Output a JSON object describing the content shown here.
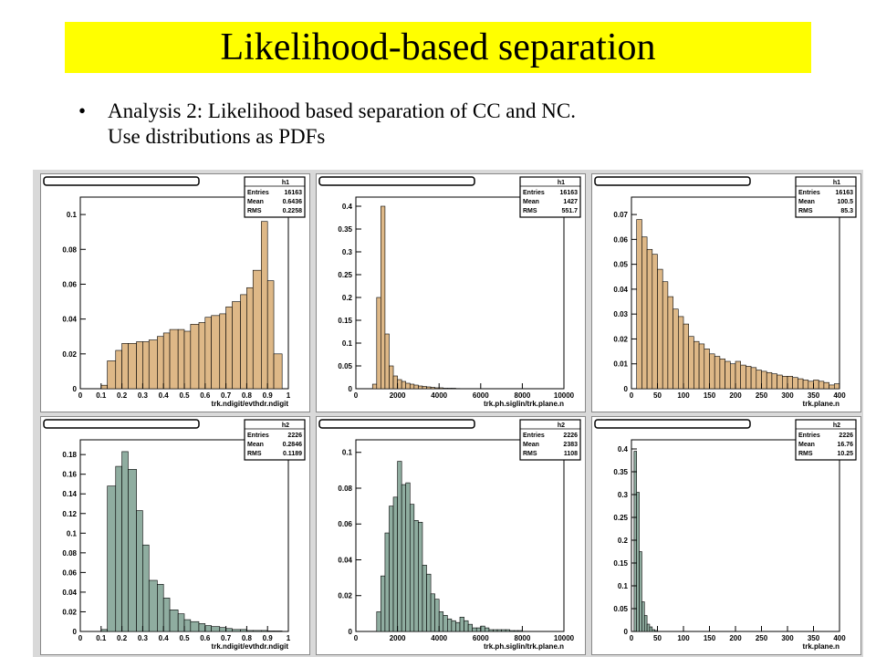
{
  "slide": {
    "title": "Likelihood-based separation",
    "bullet": "•",
    "bullet_line1": "Analysis 2: Likelihood based separation of CC and NC.",
    "bullet_line2": "Use distributions as PDFs"
  },
  "colors": {
    "title_bg": "#ffff00",
    "cc_fill": "#deb887",
    "nc_fill": "#8fada0",
    "frame_bg": "#d9d9d9"
  },
  "chart_data": [
    {
      "type": "bar",
      "histogram": "h1",
      "xlabel": "trk.ndigit/evthdr.ndigit",
      "xlim": [
        0,
        1
      ],
      "ylim": [
        0,
        0.11
      ],
      "xticks": [
        "0",
        "0.1",
        "0.2",
        "0.3",
        "0.4",
        "0.5",
        "0.6",
        "0.7",
        "0.8",
        "0.9",
        "1"
      ],
      "yticks": [
        "0",
        "0.02",
        "0.04",
        "0.06",
        "0.08",
        "0.1"
      ],
      "stats": {
        "name": "h1",
        "rows": [
          [
            "Entries",
            "16163"
          ],
          [
            "Mean",
            "0.6436"
          ],
          [
            "RMS",
            "0.2258"
          ]
        ]
      },
      "bin_edges": [
        0.1,
        0.13,
        0.17,
        0.2,
        0.23,
        0.27,
        0.3,
        0.33,
        0.37,
        0.4,
        0.43,
        0.47,
        0.5,
        0.53,
        0.57,
        0.6,
        0.63,
        0.67,
        0.7,
        0.73,
        0.77,
        0.8,
        0.83,
        0.87,
        0.9,
        0.93,
        0.97
      ],
      "values": [
        0.002,
        0.016,
        0.022,
        0.026,
        0.026,
        0.027,
        0.027,
        0.028,
        0.03,
        0.032,
        0.034,
        0.034,
        0.033,
        0.037,
        0.038,
        0.041,
        0.042,
        0.043,
        0.047,
        0.05,
        0.054,
        0.058,
        0.068,
        0.096,
        0.062,
        0.02
      ]
    },
    {
      "type": "bar",
      "histogram": "h1",
      "xlabel": "trk.ph.siglin/trk.plane.n",
      "xlim": [
        0,
        10000
      ],
      "ylim": [
        0,
        0.42
      ],
      "xticks": [
        "0",
        "2000",
        "4000",
        "6000",
        "8000",
        "10000"
      ],
      "yticks": [
        "0",
        "0.05",
        "0.1",
        "0.15",
        "0.2",
        "0.25",
        "0.3",
        "0.35",
        "0.4"
      ],
      "stats": {
        "name": "h1",
        "rows": [
          [
            "Entries",
            "16163"
          ],
          [
            "Mean",
            "1427"
          ],
          [
            "RMS",
            "551.7"
          ]
        ]
      },
      "bin_edges": [
        0,
        200,
        400,
        600,
        800,
        1000,
        1200,
        1400,
        1600,
        1800,
        2000,
        2200,
        2400,
        2600,
        2800,
        3000,
        3200,
        3400,
        3600,
        3800,
        4000,
        4200,
        4400,
        4600,
        4800,
        5000
      ],
      "values": [
        0,
        0,
        0,
        0,
        0.01,
        0.2,
        0.4,
        0.12,
        0.05,
        0.028,
        0.02,
        0.016,
        0.012,
        0.01,
        0.008,
        0.006,
        0.005,
        0.004,
        0.003,
        0.002,
        0.002,
        0.001,
        0.001,
        0.001,
        0.0005
      ]
    },
    {
      "type": "bar",
      "histogram": "h1",
      "xlabel": "trk.plane.n",
      "xlim": [
        0,
        400
      ],
      "ylim": [
        0,
        0.077
      ],
      "xticks": [
        "0",
        "50",
        "100",
        "150",
        "200",
        "250",
        "300",
        "350",
        "400"
      ],
      "yticks": [
        "0",
        "0.01",
        "0.02",
        "0.03",
        "0.04",
        "0.05",
        "0.06",
        "0.07"
      ],
      "stats": {
        "name": "h1",
        "rows": [
          [
            "Entries",
            "16163"
          ],
          [
            "Mean",
            "100.5"
          ],
          [
            "RMS",
            "85.3"
          ]
        ]
      },
      "bin_edges": [
        10,
        20,
        30,
        40,
        50,
        60,
        70,
        80,
        90,
        100,
        110,
        120,
        130,
        140,
        150,
        160,
        170,
        180,
        190,
        200,
        210,
        220,
        230,
        240,
        250,
        260,
        270,
        280,
        290,
        300,
        310,
        320,
        330,
        340,
        350,
        360,
        370,
        380,
        390,
        400
      ],
      "values": [
        0.068,
        0.061,
        0.056,
        0.054,
        0.048,
        0.043,
        0.037,
        0.032,
        0.029,
        0.026,
        0.021,
        0.019,
        0.018,
        0.016,
        0.014,
        0.013,
        0.012,
        0.011,
        0.01,
        0.011,
        0.0095,
        0.009,
        0.0085,
        0.0075,
        0.007,
        0.0065,
        0.006,
        0.0055,
        0.005,
        0.005,
        0.0045,
        0.004,
        0.0035,
        0.003,
        0.0035,
        0.003,
        0.0025,
        0.0015,
        0.002
      ]
    },
    {
      "type": "bar",
      "histogram": "h2",
      "xlabel": "trk.ndigit/evthdr.ndigit",
      "xlim": [
        0,
        1
      ],
      "ylim": [
        0,
        0.195
      ],
      "xticks": [
        "0",
        "0.1",
        "0.2",
        "0.3",
        "0.4",
        "0.5",
        "0.6",
        "0.7",
        "0.8",
        "0.9",
        "1"
      ],
      "yticks": [
        "0",
        "0.02",
        "0.04",
        "0.06",
        "0.08",
        "0.1",
        "0.12",
        "0.14",
        "0.16",
        "0.18"
      ],
      "stats": {
        "name": "h2",
        "rows": [
          [
            "Entries",
            "2226"
          ],
          [
            "Mean",
            "0.2846"
          ],
          [
            "RMS",
            "0.1189"
          ]
        ]
      },
      "bin_edges": [
        0.1,
        0.13,
        0.17,
        0.2,
        0.23,
        0.27,
        0.3,
        0.33,
        0.37,
        0.4,
        0.43,
        0.47,
        0.5,
        0.53,
        0.57,
        0.6,
        0.63,
        0.67,
        0.7,
        0.73,
        0.77,
        0.8,
        0.83,
        0.87,
        0.9,
        0.93,
        0.97
      ],
      "values": [
        0.002,
        0.148,
        0.168,
        0.183,
        0.165,
        0.123,
        0.088,
        0.052,
        0.048,
        0.034,
        0.022,
        0.018,
        0.012,
        0.01,
        0.008,
        0.006,
        0.005,
        0.004,
        0.003,
        0.002,
        0.002,
        0.001,
        0.001,
        0.001,
        0.0005,
        0.0005
      ]
    },
    {
      "type": "bar",
      "histogram": "h2",
      "xlabel": "trk.ph.siglin/trk.plane.n",
      "xlim": [
        0,
        10000
      ],
      "ylim": [
        0,
        0.107
      ],
      "xticks": [
        "0",
        "2000",
        "4000",
        "6000",
        "8000",
        "10000"
      ],
      "yticks": [
        "0",
        "0.02",
        "0.04",
        "0.06",
        "0.08",
        "0.1"
      ],
      "stats": {
        "name": "h2",
        "rows": [
          [
            "Entries",
            "2226"
          ],
          [
            "Mean",
            "2383"
          ],
          [
            "RMS",
            "1108"
          ]
        ]
      },
      "bin_edges": [
        1000,
        1200,
        1400,
        1600,
        1800,
        2000,
        2200,
        2400,
        2600,
        2800,
        3000,
        3200,
        3400,
        3600,
        3800,
        4000,
        4200,
        4400,
        4600,
        4800,
        5000,
        5200,
        5400,
        5600,
        5800,
        6000,
        6200,
        6400,
        6600,
        6800,
        7000,
        7200,
        7400,
        7600,
        7800,
        8000
      ],
      "values": [
        0.011,
        0.031,
        0.055,
        0.07,
        0.075,
        0.095,
        0.082,
        0.083,
        0.071,
        0.062,
        0.061,
        0.037,
        0.032,
        0.021,
        0.018,
        0.011,
        0.009,
        0.007,
        0.006,
        0.005,
        0.008,
        0.006,
        0.004,
        0.002,
        0.002,
        0.003,
        0.002,
        0.001,
        0.001,
        0.001,
        0.001,
        0.001,
        0.0005,
        0.0005,
        0.0005
      ]
    },
    {
      "type": "bar",
      "histogram": "h2",
      "xlabel": "trk.plane.n",
      "xlim": [
        0,
        400
      ],
      "ylim": [
        0,
        0.42
      ],
      "xticks": [
        "0",
        "50",
        "100",
        "150",
        "200",
        "250",
        "300",
        "350",
        "400"
      ],
      "yticks": [
        "0",
        "0.05",
        "0.1",
        "0.15",
        "0.2",
        "0.25",
        "0.3",
        "0.35",
        "0.4"
      ],
      "stats": {
        "name": "h2",
        "rows": [
          [
            "Entries",
            "2226"
          ],
          [
            "Mean",
            "16.76"
          ],
          [
            "RMS",
            "10.25"
          ]
        ]
      },
      "bin_edges": [
        5,
        10,
        15,
        20,
        25,
        30,
        35,
        40,
        45,
        50
      ],
      "values": [
        0.395,
        0.305,
        0.175,
        0.065,
        0.035,
        0.016,
        0.01,
        0.004,
        0.002
      ]
    }
  ]
}
